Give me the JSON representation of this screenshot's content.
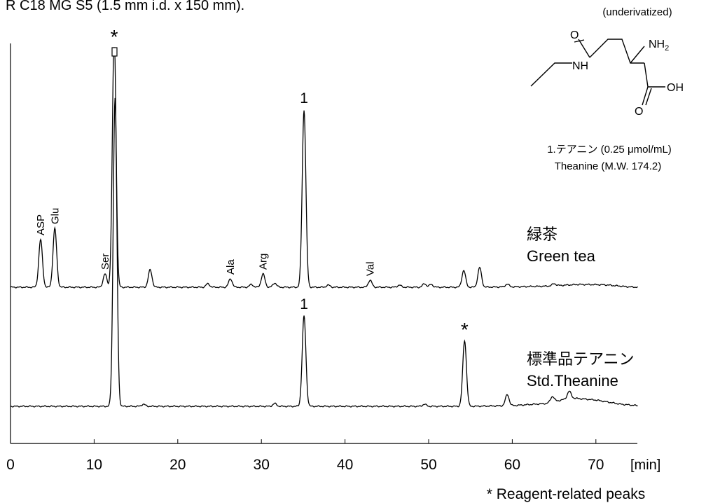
{
  "header_text": "R C18 MG S5 (1.5 mm i.d. x 150 mm).",
  "chart_data": {
    "type": "line",
    "title": "",
    "xlabel": "[min]",
    "ylabel": "",
    "xlim": [
      0,
      75
    ],
    "x_ticks": [
      0,
      10,
      20,
      30,
      40,
      50,
      60,
      70
    ],
    "grid": false,
    "legend": "none",
    "series": [
      {
        "name": "Green tea",
        "name_jp": "緑茶",
        "baseline_drift": [
          [
            0,
            0
          ],
          [
            55,
            0
          ],
          [
            60,
            0.5
          ],
          [
            64,
            1.5
          ],
          [
            68,
            4
          ],
          [
            71,
            3.5
          ],
          [
            74,
            0.5
          ],
          [
            75,
            0
          ]
        ],
        "peaks": [
          {
            "t": 3.6,
            "h": 68,
            "label": "ASP"
          },
          {
            "t": 5.3,
            "h": 84,
            "label": "Glu"
          },
          {
            "t": 11.3,
            "h": 19,
            "label": "Ser"
          },
          {
            "t": 12.4,
            "h": 360,
            "label": "*",
            "clipped": true
          },
          {
            "t": 16.7,
            "h": 25,
            "label": ""
          },
          {
            "t": 23.6,
            "h": 5,
            "label": ""
          },
          {
            "t": 26.3,
            "h": 12,
            "label": "Ala"
          },
          {
            "t": 28.8,
            "h": 4,
            "label": ""
          },
          {
            "t": 30.2,
            "h": 19,
            "label": "Arg"
          },
          {
            "t": 31.6,
            "h": 6,
            "label": ""
          },
          {
            "t": 35.1,
            "h": 253,
            "label": "1"
          },
          {
            "t": 38.0,
            "h": 3,
            "label": ""
          },
          {
            "t": 43.0,
            "h": 10,
            "label": "Val"
          },
          {
            "t": 46.5,
            "h": 3,
            "label": ""
          },
          {
            "t": 49.5,
            "h": 5,
            "label": ""
          },
          {
            "t": 50.3,
            "h": 4,
            "label": ""
          },
          {
            "t": 54.2,
            "h": 24,
            "label": ""
          },
          {
            "t": 56.1,
            "h": 28,
            "label": ""
          },
          {
            "t": 59.4,
            "h": 4,
            "label": ""
          },
          {
            "t": 65.0,
            "h": 3,
            "label": ""
          }
        ]
      },
      {
        "name": "Std.Theanine",
        "name_jp": "標準品テアニン",
        "baseline_drift": [
          [
            0,
            0
          ],
          [
            55,
            0
          ],
          [
            60,
            1
          ],
          [
            64,
            4
          ],
          [
            67,
            12
          ],
          [
            70,
            9
          ],
          [
            73,
            3
          ],
          [
            75,
            1
          ]
        ],
        "peaks": [
          {
            "t": 12.5,
            "h": 440,
            "label": "",
            "clipped": true
          },
          {
            "t": 15.9,
            "h": 3,
            "label": ""
          },
          {
            "t": 31.6,
            "h": 4,
            "label": ""
          },
          {
            "t": 35.1,
            "h": 129,
            "label": "1"
          },
          {
            "t": 49.5,
            "h": 3,
            "label": ""
          },
          {
            "t": 54.3,
            "h": 94,
            "label": "*"
          },
          {
            "t": 59.4,
            "h": 16,
            "label": ""
          },
          {
            "t": 64.8,
            "h": 8,
            "label": ""
          },
          {
            "t": 66.8,
            "h": 10,
            "label": ""
          }
        ]
      }
    ],
    "annotations": {
      "reagent_star": "*",
      "footnote": "* Reagent-related peaks"
    }
  },
  "compound": {
    "note": "(underivatized)",
    "atoms": {
      "o_top": "O",
      "nh2": "NH",
      "nh2_sub": "2",
      "nh": "NH",
      "oh": "OH",
      "o_bottom": "O"
    },
    "caption_line1": "1.テアニン  (0.25 ",
    "caption_mu": "μ",
    "caption_line1_end": "mol/mL)",
    "caption_line2": "Theanine (M.W. 174.2)"
  }
}
